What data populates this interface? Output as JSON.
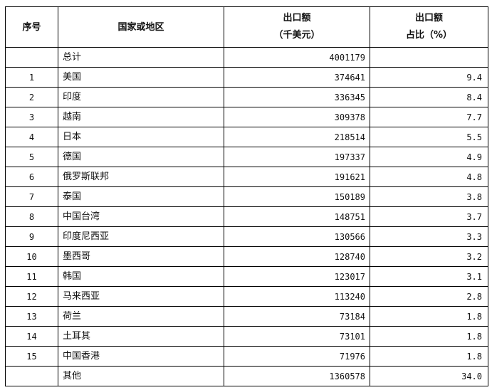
{
  "table": {
    "headers": {
      "index": "序号",
      "region": "国家或地区",
      "export_line1": "出口额",
      "export_line2": "（千美元）",
      "share_line1": "出口额",
      "share_line2": "占比（%）"
    },
    "total": {
      "index": "",
      "name": "总计",
      "value": "4001179",
      "share": ""
    },
    "rows": [
      {
        "index": "1",
        "name": "美国",
        "value": "374641",
        "share": "9.4"
      },
      {
        "index": "2",
        "name": "印度",
        "value": "336345",
        "share": "8.4"
      },
      {
        "index": "3",
        "name": "越南",
        "value": "309378",
        "share": "7.7"
      },
      {
        "index": "4",
        "name": "日本",
        "value": "218514",
        "share": "5.5"
      },
      {
        "index": "5",
        "name": "德国",
        "value": "197337",
        "share": "4.9"
      },
      {
        "index": "6",
        "name": "俄罗斯联邦",
        "value": "191621",
        "share": "4.8"
      },
      {
        "index": "7",
        "name": "泰国",
        "value": "150189",
        "share": "3.8"
      },
      {
        "index": "8",
        "name": "中国台湾",
        "value": "148751",
        "share": "3.7"
      },
      {
        "index": "9",
        "name": "印度尼西亚",
        "value": "130566",
        "share": "3.3"
      },
      {
        "index": "10",
        "name": "墨西哥",
        "value": "128740",
        "share": "3.2"
      },
      {
        "index": "11",
        "name": "韩国",
        "value": "123017",
        "share": "3.1"
      },
      {
        "index": "12",
        "name": "马来西亚",
        "value": "113240",
        "share": "2.8"
      },
      {
        "index": "13",
        "name": "荷兰",
        "value": "73184",
        "share": "1.8"
      },
      {
        "index": "14",
        "name": "土耳其",
        "value": "73101",
        "share": "1.8"
      },
      {
        "index": "15",
        "name": "中国香港",
        "value": "71976",
        "share": "1.8"
      }
    ],
    "other": {
      "index": "",
      "name": "其他",
      "value": "1360578",
      "share": "34.0"
    }
  }
}
